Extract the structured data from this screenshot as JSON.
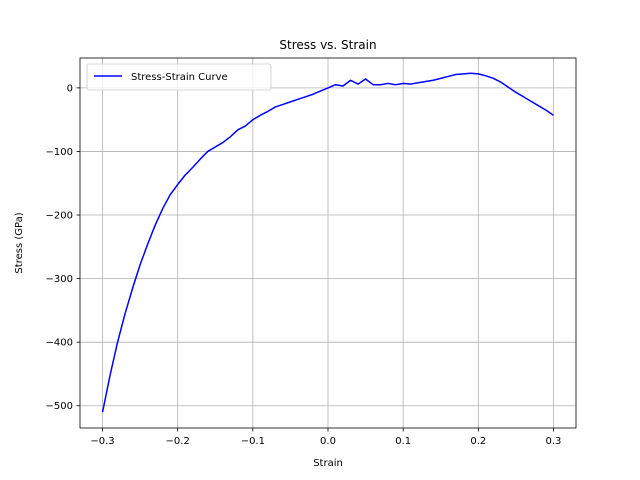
{
  "chart_data": {
    "type": "line",
    "title": "Stress vs. Strain",
    "xlabel": "Strain",
    "ylabel": "Stress (GPa)",
    "xlim": [
      -0.33,
      0.33
    ],
    "ylim": [
      -535,
      47
    ],
    "xticks": [
      -0.3,
      -0.2,
      -0.1,
      0.0,
      0.1,
      0.2,
      0.3
    ],
    "xtick_labels": [
      "−0.3",
      "−0.2",
      "−0.1",
      "0.0",
      "0.1",
      "0.2",
      "0.3"
    ],
    "yticks": [
      -500,
      -400,
      -300,
      -200,
      -100,
      0
    ],
    "ytick_labels": [
      "−500",
      "−400",
      "−300",
      "−200",
      "−100",
      "0"
    ],
    "grid": true,
    "legend": {
      "position": "upper-left",
      "entries": [
        "Stress-Strain Curve"
      ]
    },
    "series": [
      {
        "name": "Stress-Strain Curve",
        "color": "#0000ff",
        "x": [
          -0.3,
          -0.29,
          -0.28,
          -0.27,
          -0.26,
          -0.25,
          -0.24,
          -0.23,
          -0.22,
          -0.21,
          -0.2,
          -0.19,
          -0.18,
          -0.17,
          -0.16,
          -0.15,
          -0.14,
          -0.13,
          -0.12,
          -0.11,
          -0.1,
          -0.09,
          -0.08,
          -0.07,
          -0.06,
          -0.05,
          -0.04,
          -0.03,
          -0.02,
          -0.01,
          0.0,
          0.01,
          0.02,
          0.03,
          0.04,
          0.05,
          0.06,
          0.07,
          0.08,
          0.09,
          0.1,
          0.11,
          0.12,
          0.13,
          0.14,
          0.15,
          0.16,
          0.17,
          0.18,
          0.19,
          0.2,
          0.21,
          0.22,
          0.23,
          0.24,
          0.25,
          0.26,
          0.27,
          0.28,
          0.29,
          0.3
        ],
        "y": [
          -510,
          -452,
          -400,
          -355,
          -315,
          -278,
          -246,
          -216,
          -190,
          -168,
          -152,
          -137,
          -125,
          -112,
          -100,
          -93,
          -86,
          -77,
          -66,
          -60,
          -50,
          -43,
          -37,
          -30,
          -26,
          -22,
          -18,
          -14,
          -10,
          -5,
          0,
          5,
          3,
          12,
          6,
          14,
          5,
          5,
          7,
          5,
          7,
          6,
          8,
          10,
          12,
          15,
          18,
          21,
          22,
          23,
          22,
          19,
          15,
          9,
          1,
          -7,
          -14,
          -21,
          -28,
          -35,
          -43
        ]
      }
    ]
  }
}
